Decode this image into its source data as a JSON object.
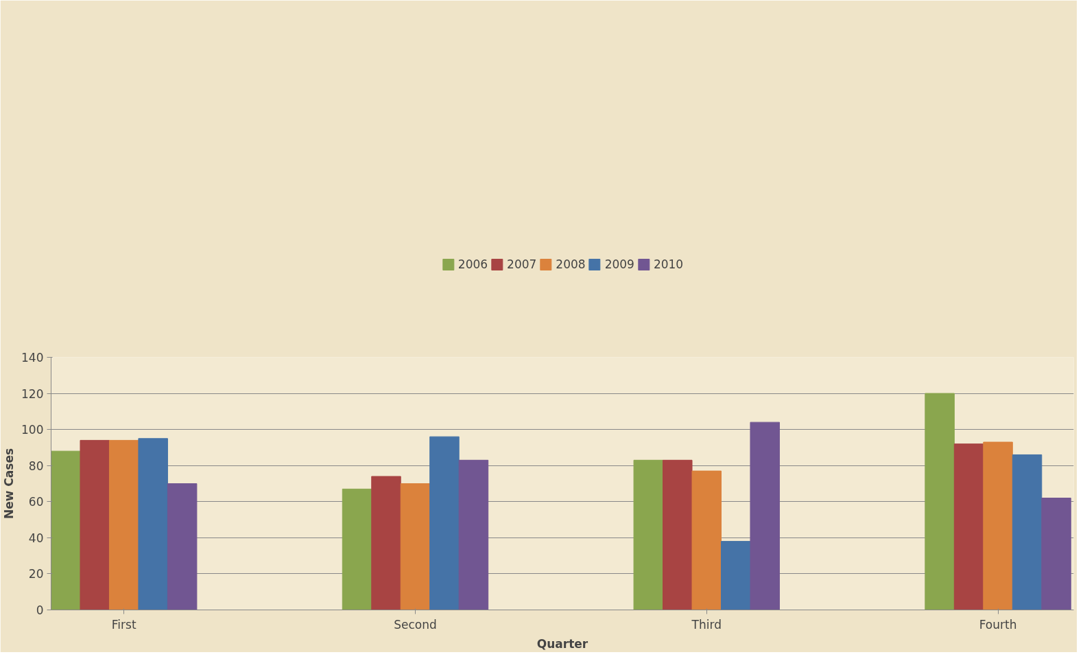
{
  "chart_data": {
    "type": "bar",
    "xlabel": "Quarter",
    "ylabel": "New Cases",
    "categories": [
      "First",
      "Second",
      "Third",
      "Fourth"
    ],
    "series": [
      {
        "name": "2006",
        "color": "#8aa64e",
        "values": [
          88,
          67,
          83,
          120
        ]
      },
      {
        "name": "2007",
        "color": "#a84443",
        "values": [
          94,
          74,
          83,
          92
        ]
      },
      {
        "name": "2008",
        "color": "#db823c",
        "values": [
          94,
          70,
          77,
          93
        ]
      },
      {
        "name": "2009",
        "color": "#4573a7",
        "values": [
          95,
          96,
          38,
          86
        ]
      },
      {
        "name": "2010",
        "color": "#715692",
        "values": [
          70,
          83,
          104,
          62
        ]
      }
    ],
    "ylim": [
      0,
      140
    ],
    "yticks": [
      0,
      20,
      40,
      60,
      80,
      100,
      120,
      140
    ],
    "grid": "y",
    "legend": "top"
  }
}
